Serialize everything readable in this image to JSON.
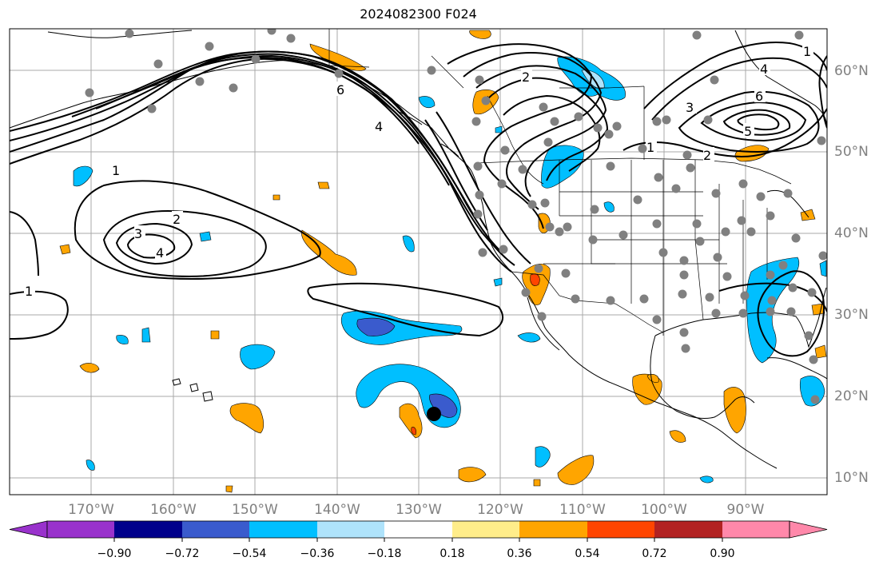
{
  "title": "2024082300 F024",
  "lon_labels": [
    "170°W",
    "160°W",
    "150°W",
    "140°W",
    "130°W",
    "120°W",
    "110°W",
    "100°W",
    "90°W"
  ],
  "lat_labels": [
    "60°N",
    "50°N",
    "40°N",
    "30°N",
    "20°N",
    "10°N"
  ],
  "contour_labels": [
    "1",
    "2",
    "3",
    "4",
    "1",
    "6",
    "4",
    "2",
    "1",
    "2",
    "3",
    "4",
    "5",
    "6",
    "1"
  ],
  "colorbar": {
    "colors": [
      "#9932cc",
      "#00008b",
      "#3a5bcd",
      "#00bfff",
      "#afe3fb",
      "#ffffff",
      "#ffed8a",
      "#ffa500",
      "#ff4500",
      "#b22222",
      "#ff88aa"
    ],
    "tick_labels": [
      "−0.90",
      "−0.72",
      "−0.54",
      "−0.36",
      "−0.18",
      "0.18",
      "0.36",
      "0.54",
      "0.72",
      "0.90"
    ]
  },
  "colors": {
    "grid": "#a9a9a9",
    "station_dot": "#808080",
    "storm_marker": "#000000"
  }
}
